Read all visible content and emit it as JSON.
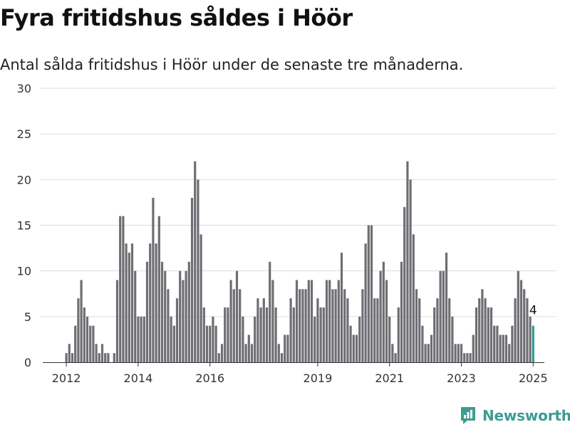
{
  "title": "Fyra fritidshus såldes i Höör",
  "subtitle": "Antal sålda fritidshus i Höör under de senaste tre månaderna.",
  "brand": "Newsworthy",
  "colors": {
    "bar": "#6e6e73",
    "highlight": "#2a9d8f",
    "grid": "#dddddd",
    "brand": "#3e9b93"
  },
  "chart_data": {
    "type": "bar",
    "ylim": [
      0,
      30
    ],
    "yticks": [
      0,
      5,
      10,
      15,
      20,
      25,
      30
    ],
    "xticks": [
      {
        "label": "2012",
        "index": 0
      },
      {
        "label": "2014",
        "index": 24
      },
      {
        "label": "2016",
        "index": 48
      },
      {
        "label": "2019",
        "index": 84
      },
      {
        "label": "2021",
        "index": 108
      },
      {
        "label": "2023",
        "index": 132
      },
      {
        "label": "2025",
        "index": 156
      }
    ],
    "values": [
      1,
      2,
      1,
      4,
      7,
      9,
      6,
      5,
      4,
      4,
      2,
      1,
      2,
      1,
      1,
      0,
      1,
      9,
      16,
      16,
      13,
      12,
      13,
      10,
      5,
      5,
      5,
      11,
      13,
      18,
      13,
      16,
      11,
      10,
      8,
      5,
      4,
      7,
      10,
      9,
      10,
      11,
      18,
      22,
      20,
      14,
      6,
      4,
      4,
      5,
      4,
      1,
      2,
      6,
      6,
      9,
      8,
      10,
      8,
      5,
      2,
      3,
      2,
      5,
      7,
      6,
      7,
      6,
      11,
      9,
      6,
      2,
      1,
      3,
      3,
      7,
      6,
      9,
      8,
      8,
      8,
      9,
      9,
      5,
      7,
      6,
      6,
      9,
      9,
      8,
      8,
      9,
      12,
      8,
      7,
      4,
      3,
      3,
      5,
      8,
      13,
      15,
      15,
      7,
      7,
      10,
      11,
      9,
      5,
      2,
      1,
      6,
      11,
      17,
      22,
      20,
      14,
      8,
      7,
      4,
      2,
      2,
      3,
      6,
      7,
      10,
      10,
      12,
      7,
      5,
      2,
      2,
      2,
      1,
      1,
      1,
      3,
      6,
      7,
      8,
      7,
      6,
      6,
      4,
      4,
      3,
      3,
      3,
      2,
      4,
      7,
      10,
      9,
      8,
      7,
      5,
      4
    ],
    "highlight_index": 156,
    "highlight_label": "4"
  }
}
